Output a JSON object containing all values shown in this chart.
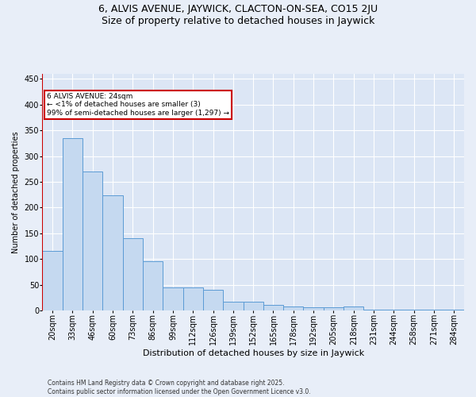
{
  "title1": "6, ALVIS AVENUE, JAYWICK, CLACTON-ON-SEA, CO15 2JU",
  "title2": "Size of property relative to detached houses in Jaywick",
  "xlabel": "Distribution of detached houses by size in Jaywick",
  "ylabel": "Number of detached properties",
  "categories": [
    "20sqm",
    "33sqm",
    "46sqm",
    "60sqm",
    "73sqm",
    "86sqm",
    "99sqm",
    "112sqm",
    "126sqm",
    "139sqm",
    "152sqm",
    "165sqm",
    "178sqm",
    "192sqm",
    "205sqm",
    "218sqm",
    "231sqm",
    "244sqm",
    "258sqm",
    "271sqm",
    "284sqm"
  ],
  "values": [
    115,
    335,
    270,
    223,
    140,
    95,
    45,
    45,
    40,
    17,
    17,
    10,
    7,
    6,
    6,
    7,
    2,
    1,
    1,
    1,
    1
  ],
  "bar_color": "#c5d9f0",
  "bar_edge_color": "#5b9bd5",
  "ylim": [
    0,
    460
  ],
  "yticks": [
    0,
    50,
    100,
    150,
    200,
    250,
    300,
    350,
    400,
    450
  ],
  "annotation_text": "6 ALVIS AVENUE: 24sqm\n← <1% of detached houses are smaller (3)\n99% of semi-detached houses are larger (1,297) →",
  "footer1": "Contains HM Land Registry data © Crown copyright and database right 2025.",
  "footer2": "Contains public sector information licensed under the Open Government Licence v3.0.",
  "background_color": "#e8eef8",
  "plot_bg_color": "#dce6f5",
  "grid_color": "#ffffff",
  "annotation_box_color": "#ffffff",
  "annotation_box_edge": "#cc0000",
  "vline_color": "#cc0000",
  "title_fontsize": 9,
  "xlabel_fontsize": 8,
  "ylabel_fontsize": 7,
  "tick_fontsize": 7,
  "annot_fontsize": 6.5,
  "footer_fontsize": 5.5
}
